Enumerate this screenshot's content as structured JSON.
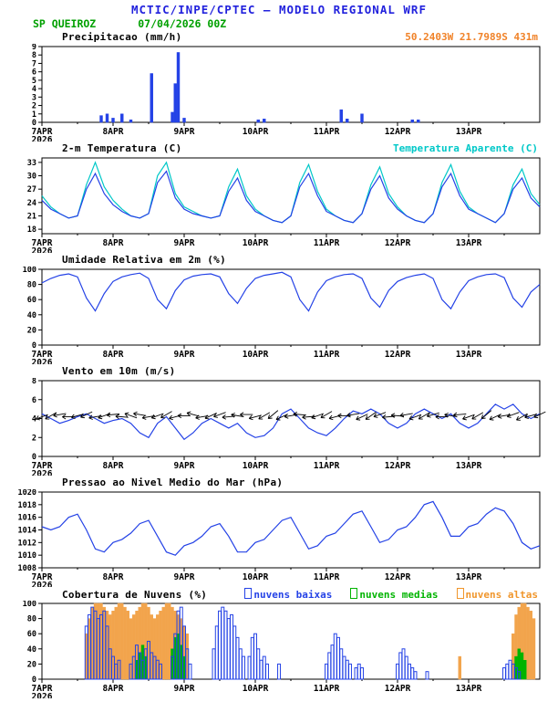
{
  "header": {
    "title": "MCTIC/INPE/CPTEC — MODELO REGIONAL WRF",
    "station": "SP QUEIROZ",
    "run": "07/04/2026 00Z",
    "coords": "50.2403W 21.7989S 431m",
    "colors": {
      "title": "#2222dd",
      "station": "#00a000",
      "coords": "#f08228"
    }
  },
  "x_axis": {
    "tmax": 168,
    "ticks": [
      0,
      24,
      48,
      72,
      96,
      120,
      144
    ],
    "labels": [
      "7APR",
      "8APR",
      "9APR",
      "10APR",
      "11APR",
      "12APR",
      "13APR"
    ],
    "year": "2026"
  },
  "chart_data": [
    {
      "id": "precip",
      "title": "Precipitacao (mm/h)",
      "right_label": "50.2403W 21.7989S 431m",
      "right_color": "#f08228",
      "type": "bar",
      "ylim": [
        0,
        9
      ],
      "yticks": [
        0,
        1,
        2,
        3,
        4,
        5,
        6,
        7,
        8,
        9
      ],
      "xlabel": "",
      "ylabel": "mm/h",
      "series": [
        {
          "name": "precipitacao",
          "type": "bar",
          "color": "#2442e6",
          "fill": true,
          "points": [
            [
              20,
              0.8
            ],
            [
              22,
              1
            ],
            [
              24,
              0.5
            ],
            [
              27,
              1
            ],
            [
              30,
              0.3
            ],
            [
              37,
              5.8
            ],
            [
              44,
              1.2
            ],
            [
              45,
              4.6
            ],
            [
              46,
              8.3
            ],
            [
              48,
              0.5
            ],
            [
              73,
              0.3
            ],
            [
              75,
              0.4
            ],
            [
              101,
              1.5
            ],
            [
              103,
              0.4
            ],
            [
              108,
              1
            ],
            [
              125,
              0.3
            ],
            [
              127,
              0.3
            ]
          ]
        }
      ]
    },
    {
      "id": "temp2m",
      "title": "2-m Temperatura (C)",
      "right_label": "Temperatura Aparente (C)",
      "right_color": "#00c8c8",
      "type": "line",
      "ylim": [
        17,
        34
      ],
      "yticks": [
        18,
        21,
        24,
        27,
        30,
        33
      ],
      "series": [
        {
          "name": "temperatura-aparente",
          "type": "line",
          "color": "#00c8c8",
          "values": [
            25.5,
            23,
            21.5,
            20.5,
            21,
            28,
            33,
            27.5,
            24.5,
            22.5,
            21,
            20.5,
            21.5,
            30,
            33,
            26,
            23,
            22,
            21,
            20.5,
            21,
            27.5,
            31.5,
            25.5,
            22.5,
            21,
            20,
            19.5,
            21,
            28.5,
            32.5,
            26.5,
            22.5,
            21,
            20,
            19.5,
            21.5,
            28,
            32,
            26,
            23,
            21,
            20,
            19.5,
            21.5,
            28.5,
            32.5,
            26.5,
            23,
            21.5,
            20.5,
            19.5,
            21.5,
            28,
            31.5,
            26,
            23.5
          ]
        },
        {
          "name": "temperatura-2m",
          "type": "line",
          "color": "#2442e6",
          "values": [
            24.5,
            22.5,
            21.5,
            20.5,
            21,
            27,
            30.5,
            26,
            23.5,
            22,
            21,
            20.5,
            21.5,
            28.5,
            31,
            25,
            22.5,
            21.5,
            21,
            20.5,
            21,
            26.5,
            29.5,
            24.5,
            22,
            21,
            20,
            19.5,
            21,
            27.5,
            30.5,
            25.5,
            22,
            21,
            20,
            19.5,
            21.5,
            27,
            30,
            25,
            22.5,
            21,
            20,
            19.5,
            21.5,
            27.5,
            30.5,
            25.5,
            22.5,
            21.5,
            20.5,
            19.5,
            21.5,
            27,
            29.5,
            25,
            23
          ]
        }
      ]
    },
    {
      "id": "rh2m",
      "title": "Umidade Relativa em 2m (%)",
      "type": "line",
      "ylim": [
        0,
        100
      ],
      "yticks": [
        0,
        20,
        40,
        60,
        80,
        100
      ],
      "series": [
        {
          "name": "umidade-relativa",
          "type": "line",
          "color": "#2442e6",
          "values": [
            82,
            88,
            92,
            94,
            90,
            62,
            45,
            68,
            84,
            90,
            93,
            95,
            88,
            60,
            48,
            72,
            86,
            91,
            93,
            94,
            90,
            68,
            55,
            75,
            88,
            92,
            94,
            96,
            90,
            60,
            45,
            70,
            85,
            90,
            93,
            94,
            88,
            62,
            50,
            72,
            84,
            89,
            92,
            94,
            88,
            60,
            48,
            70,
            85,
            90,
            93,
            94,
            89,
            62,
            50,
            70,
            80
          ]
        }
      ]
    },
    {
      "id": "wind10m",
      "title": "Vento em 10m (m/s)",
      "type": "line",
      "ylim": [
        0,
        8
      ],
      "yticks": [
        0,
        2,
        4,
        6,
        8
      ],
      "series": [
        {
          "name": "vento-velocidade",
          "type": "line",
          "color": "#2442e6",
          "values": [
            4.5,
            4,
            3.5,
            3.8,
            4.2,
            4.5,
            4,
            3.5,
            3.8,
            4,
            3.5,
            2.5,
            2,
            3.5,
            4.2,
            3,
            1.8,
            2.5,
            3.5,
            4,
            3.5,
            3,
            3.5,
            2.5,
            2,
            2.2,
            3,
            4.5,
            5,
            4,
            3,
            2.5,
            2.2,
            3,
            4,
            4.8,
            4.5,
            5,
            4.5,
            3.5,
            3,
            3.5,
            4.5,
            5,
            4.5,
            4,
            4.5,
            3.5,
            3,
            3.5,
            4.5,
            5.5,
            5,
            5.5,
            4.5,
            4,
            4.5
          ]
        },
        {
          "name": "vento-direcao",
          "type": "barbs",
          "level": 4.3,
          "dirs": [
            160,
            150,
            170,
            180,
            165,
            155,
            170,
            160,
            175,
            185,
            200,
            190,
            170,
            160,
            150,
            165,
            180,
            195,
            170,
            155,
            160,
            175,
            190,
            180,
            165,
            150,
            140,
            155,
            170,
            185,
            175,
            160,
            150,
            165,
            180,
            170,
            155,
            145,
            160,
            175,
            185,
            170,
            160,
            150,
            165,
            180,
            190,
            175,
            160,
            150,
            140,
            155,
            170,
            160,
            150,
            165,
            155
          ]
        }
      ]
    },
    {
      "id": "slp",
      "title": "Pressao ao Nivel Medio do Mar (hPa)",
      "type": "line",
      "ylim": [
        1008,
        1020
      ],
      "yticks": [
        1008,
        1010,
        1012,
        1014,
        1016,
        1018,
        1020
      ],
      "series": [
        {
          "name": "pressao-nivel-mar",
          "type": "line",
          "color": "#2442e6",
          "values": [
            1014.5,
            1014,
            1014.5,
            1016,
            1016.5,
            1014,
            1011,
            1010.5,
            1012,
            1012.5,
            1013.5,
            1015,
            1015.5,
            1013,
            1010.5,
            1010,
            1011.5,
            1012,
            1013,
            1014.5,
            1015,
            1013,
            1010.5,
            1010.5,
            1012,
            1012.5,
            1014,
            1015.5,
            1016,
            1013.5,
            1011,
            1011.5,
            1013,
            1013.5,
            1015,
            1016.5,
            1017,
            1014.5,
            1012,
            1012.5,
            1014,
            1014.5,
            1016,
            1018,
            1018.5,
            1016,
            1013,
            1013,
            1014.5,
            1015,
            1016.5,
            1017.5,
            1017,
            1015,
            1012,
            1011,
            1011.5
          ]
        }
      ]
    },
    {
      "id": "clouds",
      "title": "Cobertura de Nuvens (%)",
      "type": "bar",
      "ylim": [
        0,
        100
      ],
      "yticks": [
        0,
        20,
        40,
        60,
        80,
        100
      ],
      "legend": [
        {
          "name": "nuvens-baixas",
          "label": "nuvens baixas",
          "color": "#2442e6"
        },
        {
          "name": "nuvens-medias",
          "label": "nuvens medias",
          "color": "#00b400"
        },
        {
          "name": "nuvens-altas",
          "label": "nuvens altas",
          "color": "#f0962c"
        }
      ],
      "series": [
        {
          "name": "nuvens-altas",
          "type": "bar",
          "color": "#f2a44c",
          "fill": true,
          "points": [
            [
              15,
              60
            ],
            [
              16,
              80
            ],
            [
              17,
              95
            ],
            [
              18,
              100
            ],
            [
              19,
              100
            ],
            [
              20,
              100
            ],
            [
              21,
              95
            ],
            [
              22,
              90
            ],
            [
              23,
              85
            ],
            [
              24,
              90
            ],
            [
              25,
              95
            ],
            [
              26,
              100
            ],
            [
              27,
              100
            ],
            [
              28,
              95
            ],
            [
              29,
              90
            ],
            [
              30,
              80
            ],
            [
              31,
              85
            ],
            [
              32,
              90
            ],
            [
              33,
              95
            ],
            [
              34,
              100
            ],
            [
              35,
              100
            ],
            [
              36,
              95
            ],
            [
              37,
              85
            ],
            [
              38,
              80
            ],
            [
              39,
              85
            ],
            [
              40,
              90
            ],
            [
              41,
              95
            ],
            [
              42,
              100
            ],
            [
              43,
              100
            ],
            [
              44,
              95
            ],
            [
              45,
              90
            ],
            [
              46,
              85
            ],
            [
              47,
              80
            ],
            [
              48,
              70
            ],
            [
              49,
              60
            ],
            [
              141,
              30
            ],
            [
              159,
              60
            ],
            [
              160,
              85
            ],
            [
              161,
              95
            ],
            [
              162,
              100
            ],
            [
              163,
              100
            ],
            [
              164,
              95
            ],
            [
              165,
              90
            ],
            [
              166,
              80
            ]
          ]
        },
        {
          "name": "nuvens-medias",
          "type": "bar",
          "color": "#00b400",
          "fill": true,
          "points": [
            [
              32,
              25
            ],
            [
              33,
              35
            ],
            [
              34,
              45
            ],
            [
              35,
              30
            ],
            [
              44,
              40
            ],
            [
              45,
              55
            ],
            [
              46,
              60
            ],
            [
              47,
              45
            ],
            [
              48,
              30
            ],
            [
              160,
              30
            ],
            [
              161,
              40
            ],
            [
              162,
              35
            ],
            [
              163,
              25
            ]
          ]
        },
        {
          "name": "nuvens-baixas",
          "type": "bar",
          "color": "#2442e6",
          "fill": false,
          "points": [
            [
              15,
              70
            ],
            [
              16,
              85
            ],
            [
              17,
              95
            ],
            [
              18,
              90
            ],
            [
              19,
              80
            ],
            [
              20,
              85
            ],
            [
              21,
              90
            ],
            [
              22,
              70
            ],
            [
              23,
              40
            ],
            [
              24,
              30
            ],
            [
              25,
              20
            ],
            [
              26,
              25
            ],
            [
              30,
              20
            ],
            [
              31,
              30
            ],
            [
              32,
              45
            ],
            [
              33,
              35
            ],
            [
              34,
              25
            ],
            [
              35,
              40
            ],
            [
              36,
              50
            ],
            [
              37,
              35
            ],
            [
              38,
              30
            ],
            [
              39,
              25
            ],
            [
              40,
              20
            ],
            [
              44,
              30
            ],
            [
              45,
              60
            ],
            [
              46,
              90
            ],
            [
              47,
              95
            ],
            [
              48,
              70
            ],
            [
              49,
              40
            ],
            [
              50,
              20
            ],
            [
              58,
              40
            ],
            [
              59,
              70
            ],
            [
              60,
              90
            ],
            [
              61,
              95
            ],
            [
              62,
              90
            ],
            [
              63,
              80
            ],
            [
              64,
              85
            ],
            [
              65,
              70
            ],
            [
              66,
              55
            ],
            [
              67,
              40
            ],
            [
              68,
              30
            ],
            [
              70,
              30
            ],
            [
              71,
              55
            ],
            [
              72,
              60
            ],
            [
              73,
              40
            ],
            [
              74,
              25
            ],
            [
              75,
              30
            ],
            [
              76,
              20
            ],
            [
              80,
              20
            ],
            [
              96,
              20
            ],
            [
              97,
              35
            ],
            [
              98,
              45
            ],
            [
              99,
              60
            ],
            [
              100,
              55
            ],
            [
              101,
              40
            ],
            [
              102,
              30
            ],
            [
              103,
              25
            ],
            [
              104,
              20
            ],
            [
              106,
              15
            ],
            [
              107,
              20
            ],
            [
              108,
              15
            ],
            [
              120,
              20
            ],
            [
              121,
              35
            ],
            [
              122,
              40
            ],
            [
              123,
              30
            ],
            [
              124,
              20
            ],
            [
              125,
              15
            ],
            [
              126,
              10
            ],
            [
              130,
              10
            ],
            [
              156,
              15
            ],
            [
              157,
              20
            ],
            [
              158,
              25
            ],
            [
              159,
              20
            ],
            [
              160,
              15
            ],
            [
              161,
              10
            ]
          ]
        }
      ]
    }
  ]
}
